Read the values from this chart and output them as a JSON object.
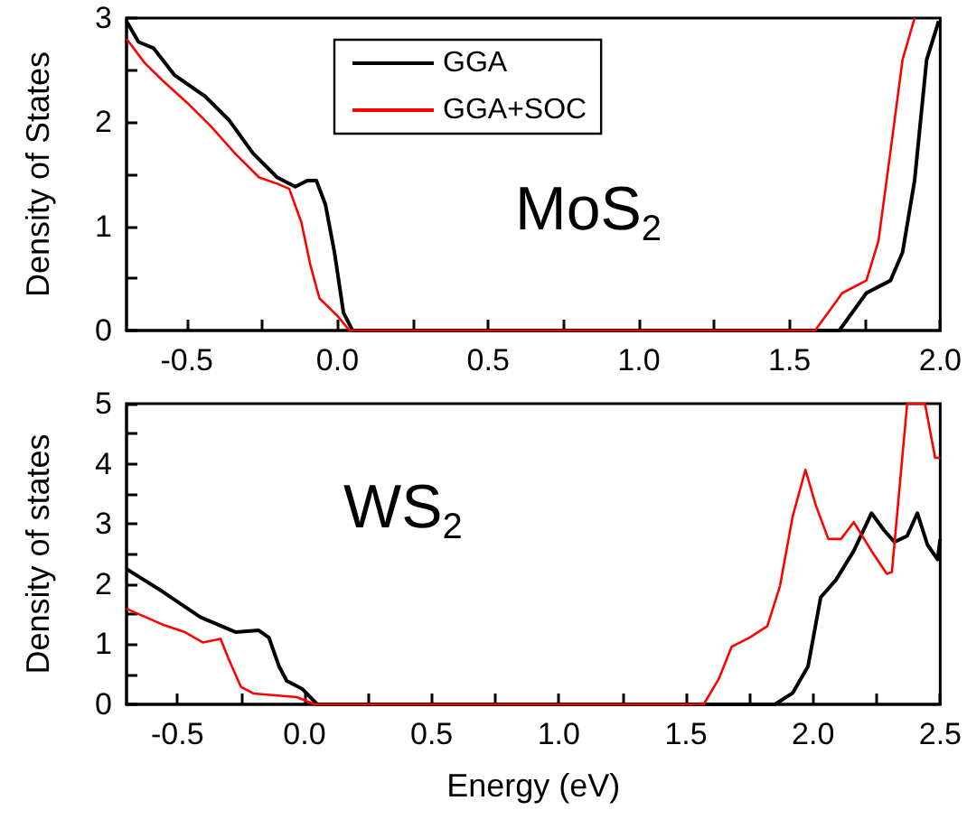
{
  "chart_data": [
    {
      "type": "line",
      "ylabel": "Density of States",
      "annotations": [
        "MoS$_{2}$"
      ],
      "legend": "top",
      "grid": false,
      "xlim": [
        -0.7,
        2.0
      ],
      "ylim": [
        0,
        3
      ],
      "xticks": [
        {
          "value": -0.5,
          "label": "-0.5"
        },
        {
          "value": -0.25,
          "label": null
        },
        {
          "value": 0,
          "label": "0.0"
        },
        {
          "value": 0.25,
          "label": null
        },
        {
          "value": 0.5,
          "label": "0.5"
        },
        {
          "value": 0.75,
          "label": null
        },
        {
          "value": 1,
          "label": "1.0"
        },
        {
          "value": 1.25,
          "label": null
        },
        {
          "value": 1.5,
          "label": "1.5"
        },
        {
          "value": 1.75,
          "label": null
        },
        {
          "value": 2,
          "label": "2.0"
        }
      ],
      "yticks": [
        0,
        {
          "value": 0.5,
          "label": null
        },
        1,
        {
          "value": 1.5,
          "label": null
        },
        2,
        {
          "value": 2.5,
          "label": null
        },
        3
      ],
      "series": [
        {
          "name": "GGA",
          "color": "#000000",
          "x": [
            -0.7,
            -0.66,
            -0.61,
            -0.54,
            -0.44,
            -0.36,
            -0.28,
            -0.2,
            -0.14,
            -0.1,
            -0.07,
            -0.04,
            -0.01,
            0.02,
            0.05,
            1.665,
            1.755,
            1.835,
            1.875,
            1.915,
            1.955,
            1.995
          ],
          "values": [
            2.97,
            2.77,
            2.71,
            2.45,
            2.25,
            2.02,
            1.7,
            1.47,
            1.38,
            1.44,
            1.44,
            1.21,
            0.75,
            0.17,
            0,
            0,
            0.36,
            0.48,
            0.75,
            1.44,
            2.6,
            2.97
          ]
        },
        {
          "name": "GGA+SOC",
          "color": "#ff0000",
          "x": [
            -0.7,
            -0.64,
            -0.58,
            -0.5,
            -0.42,
            -0.34,
            -0.26,
            -0.2,
            -0.16,
            -0.12,
            -0.09,
            -0.06,
            0.0,
            0.04,
            1.585,
            1.675,
            1.755,
            1.795,
            1.835,
            1.875,
            1.915
          ],
          "values": [
            2.8,
            2.57,
            2.4,
            2.19,
            1.96,
            1.7,
            1.47,
            1.41,
            1.36,
            1.04,
            0.63,
            0.31,
            0.14,
            0,
            0,
            0.36,
            0.48,
            0.86,
            1.72,
            2.6,
            3.0
          ]
        }
      ]
    },
    {
      "type": "line",
      "xlabel": "Energy (eV)",
      "ylabel": "Density of states",
      "annotations": [
        "WS$_{2}$"
      ],
      "grid": false,
      "xlim": [
        -0.7,
        2.5
      ],
      "ylim": [
        0,
        5
      ],
      "xticks": [
        {
          "value": -0.5,
          "label": "-0.5"
        },
        {
          "value": -0.25,
          "label": null
        },
        {
          "value": 0,
          "label": "0.0"
        },
        {
          "value": 0.25,
          "label": null
        },
        {
          "value": 0.5,
          "label": "0.5"
        },
        {
          "value": 0.75,
          "label": null
        },
        {
          "value": 1,
          "label": "1.0"
        },
        {
          "value": 1.25,
          "label": null
        },
        {
          "value": 1.5,
          "label": "1.5"
        },
        {
          "value": 1.75,
          "label": null
        },
        {
          "value": 2,
          "label": "2.0"
        },
        {
          "value": 2.25,
          "label": null
        },
        {
          "value": 2.5,
          "label": "2.5"
        }
      ],
      "yticks": [
        0,
        {
          "value": 0.5,
          "label": null
        },
        1,
        {
          "value": 1.5,
          "label": null
        },
        2,
        {
          "value": 2.5,
          "label": null
        },
        3,
        {
          "value": 3.5,
          "label": null
        },
        4,
        {
          "value": 4.5,
          "label": null
        },
        5
      ],
      "series": [
        {
          "color": "#000000",
          "x": [
            -0.7,
            -0.56,
            -0.41,
            -0.27,
            -0.18,
            -0.14,
            -0.1,
            -0.07,
            -0.01,
            0.05,
            1.85,
            1.92,
            1.98,
            2.03,
            2.09,
            2.16,
            2.23,
            2.28,
            2.32,
            2.37,
            2.41,
            2.45,
            2.49,
            2.5
          ],
          "values": [
            2.25,
            1.88,
            1.45,
            1.2,
            1.23,
            1.11,
            0.63,
            0.39,
            0.26,
            0,
            0,
            0.19,
            0.63,
            1.78,
            2.07,
            2.55,
            3.18,
            2.89,
            2.7,
            2.8,
            3.18,
            2.65,
            2.41,
            2.75
          ]
        },
        {
          "color": "#ff0000",
          "x": [
            -0.7,
            -0.56,
            -0.47,
            -0.4,
            -0.33,
            -0.3,
            -0.25,
            -0.2,
            -0.03,
            0.04,
            1.57,
            1.63,
            1.68,
            1.75,
            1.82,
            1.87,
            1.92,
            1.97,
            2.01,
            2.06,
            2.11,
            2.16,
            2.23,
            2.29,
            2.31,
            2.37,
            2.44,
            2.48,
            2.5
          ],
          "values": [
            1.59,
            1.33,
            1.2,
            1.03,
            1.09,
            0.77,
            0.29,
            0.18,
            0.12,
            0,
            0,
            0.43,
            0.96,
            1.11,
            1.3,
            1.97,
            3.13,
            3.9,
            3.32,
            2.75,
            2.75,
            3.03,
            2.55,
            2.17,
            2.2,
            5.0,
            5.0,
            4.1,
            4.1
          ]
        }
      ]
    }
  ]
}
